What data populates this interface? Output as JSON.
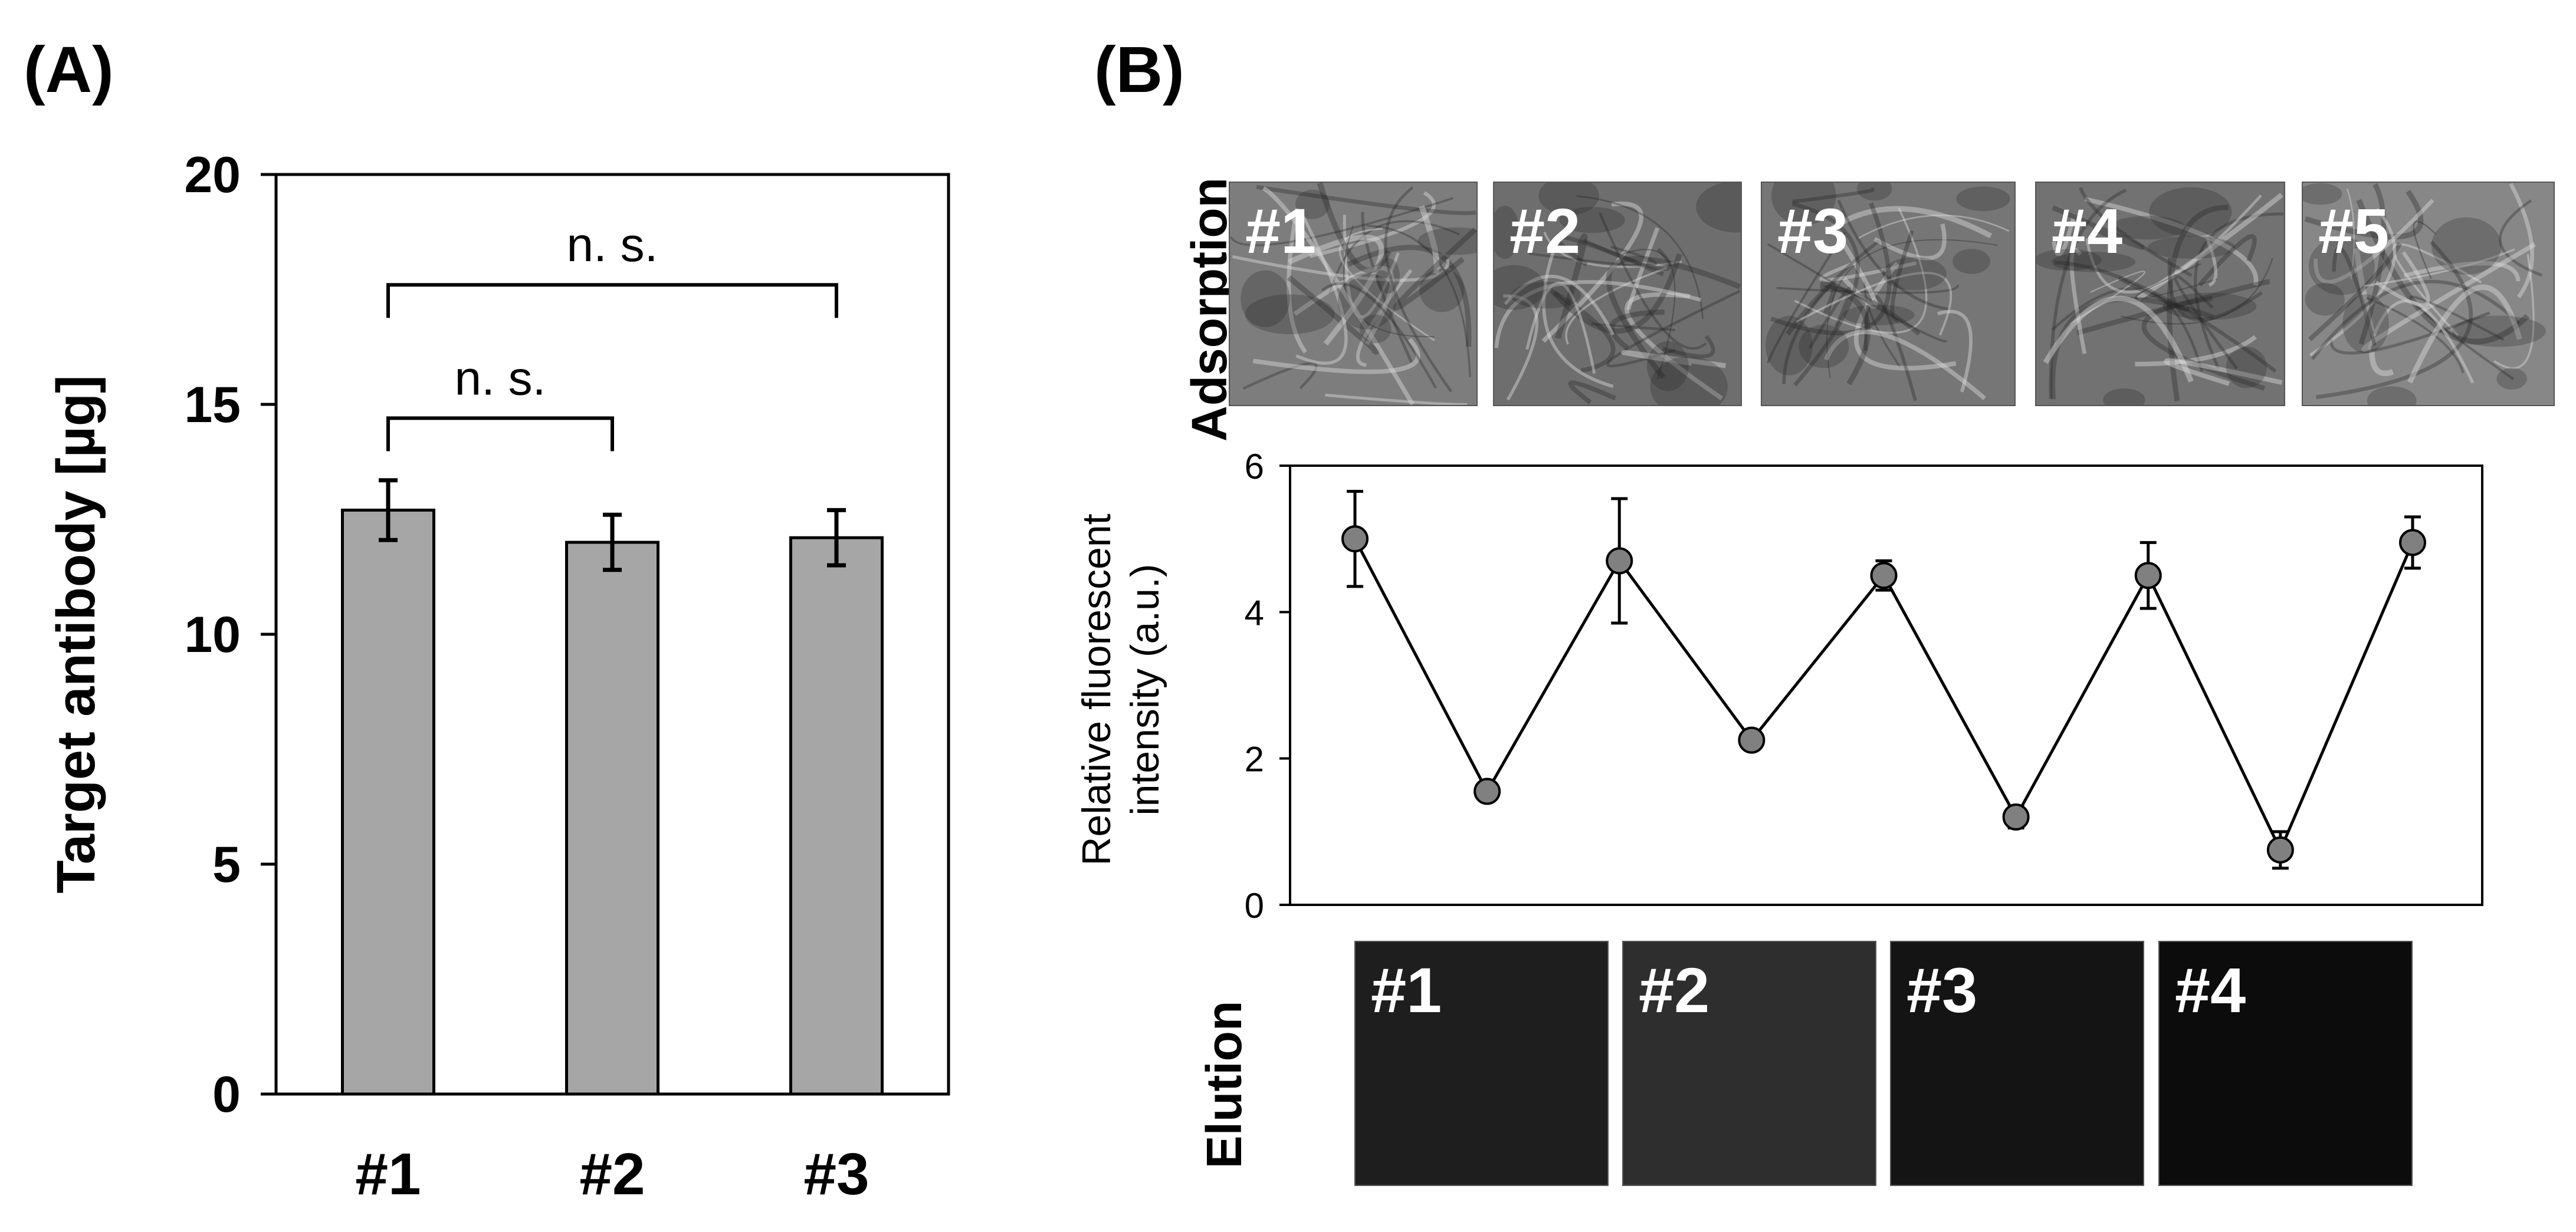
{
  "panel_a_label": "(A)",
  "panel_b_label": "(B)",
  "row_labels": {
    "top": "Adsorption",
    "bottom": "Elution"
  },
  "adsorption_images": [
    "#1",
    "#2",
    "#3",
    "#4",
    "#5"
  ],
  "elution_images": [
    "#1",
    "#2",
    "#3",
    "#4"
  ],
  "chart_data": [
    {
      "type": "bar",
      "title": "",
      "xlabel": "",
      "ylabel": "Target antibody [µg]",
      "categories": [
        "#1",
        "#2",
        "#3"
      ],
      "values": [
        12.7,
        12.0,
        12.1
      ],
      "errors": [
        0.65,
        0.6,
        0.6
      ],
      "ylim": [
        0,
        20
      ],
      "yticks": [
        0,
        5,
        10,
        15,
        20
      ],
      "bar_color": "#a6a6a6",
      "annotations": [
        {
          "text": "n. s.",
          "from": "#1",
          "to": "#2",
          "level": 14.7
        },
        {
          "text": "n. s.",
          "from": "#1",
          "to": "#3",
          "level": 17.6
        }
      ]
    },
    {
      "type": "line",
      "title": "",
      "xlabel": "",
      "ylabel": "Relative fluorescent intensity (a.u.)",
      "x": [
        1,
        2,
        3,
        4,
        5,
        6,
        7,
        8,
        9
      ],
      "values": [
        5.0,
        1.55,
        4.7,
        2.25,
        4.5,
        1.2,
        4.5,
        0.75,
        4.95
      ],
      "errors": [
        0.65,
        0.0,
        0.85,
        0.0,
        0.2,
        0.15,
        0.45,
        0.25,
        0.35
      ],
      "ylim": [
        0,
        6
      ],
      "yticks": [
        0,
        2,
        4,
        6
      ],
      "marker_color": "#808080"
    }
  ]
}
